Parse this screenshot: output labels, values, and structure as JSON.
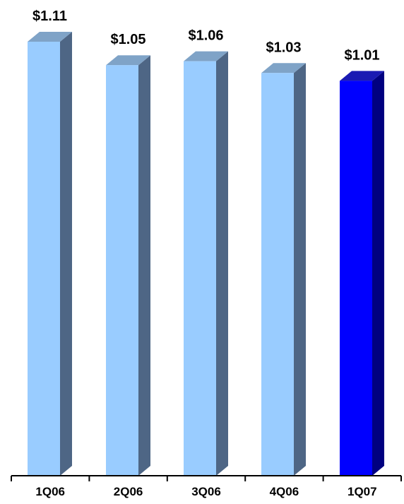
{
  "chart_data": {
    "type": "bar",
    "title": "",
    "xlabel": "",
    "ylabel": "",
    "categories": [
      "1Q06",
      "2Q06",
      "3Q06",
      "4Q06",
      "1Q07"
    ],
    "values": [
      1.11,
      1.05,
      1.06,
      1.03,
      1.01
    ],
    "value_labels": [
      "$1.11",
      "$1.05",
      "$1.06",
      "$1.03",
      "$1.01"
    ],
    "ylim": [
      0,
      1.11
    ],
    "grid": false,
    "legend": "none",
    "style": "3d-bar",
    "colors": {
      "default_front": "#99ccff",
      "default_top": "#7fa3c7",
      "default_side": "#4e6685",
      "highlight_front": "#0000ff",
      "highlight_top": "#1a1ab3",
      "highlight_side": "#000080",
      "axis": "#000000"
    },
    "highlight_category": "1Q07"
  }
}
